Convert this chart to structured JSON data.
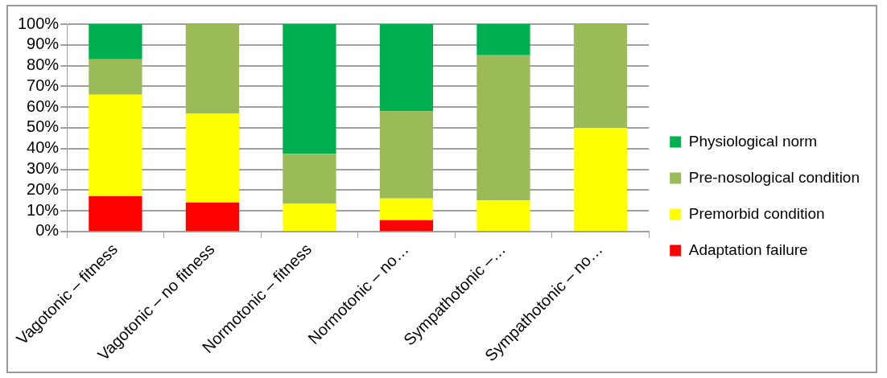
{
  "chart_data": {
    "type": "bar",
    "stacked": true,
    "categories": [
      "Vagotonic – fitness",
      "Vagotonic – no fitness",
      "Normotonic – fitness",
      "Normotonic – no…",
      "Sympathotonic –…",
      "Sympathotonic – no…"
    ],
    "series": [
      {
        "name": "Adaptation failure",
        "color": "#ff0000",
        "values": [
          17,
          14,
          0,
          5.5,
          0,
          0
        ]
      },
      {
        "name": "Premorbid condition",
        "color": "#ffff00",
        "values": [
          49,
          43,
          13.5,
          10.5,
          15,
          50
        ]
      },
      {
        "name": "Pre-nosological condition",
        "color": "#9bbb59",
        "values": [
          17,
          43,
          24,
          42,
          70,
          50
        ]
      },
      {
        "name": "Physiological norm",
        "color": "#00b050",
        "values": [
          17,
          0,
          62.5,
          42,
          15,
          0
        ]
      }
    ],
    "ylim": [
      0,
      100
    ],
    "yticks": [
      {
        "value": 0,
        "label": "0%"
      },
      {
        "value": 10,
        "label": "10%"
      },
      {
        "value": 20,
        "label": "20%"
      },
      {
        "value": 30,
        "label": "30%"
      },
      {
        "value": 40,
        "label": "40%"
      },
      {
        "value": 50,
        "label": "50%"
      },
      {
        "value": 60,
        "label": "60%"
      },
      {
        "value": 70,
        "label": "70%"
      },
      {
        "value": 80,
        "label": "80%"
      },
      {
        "value": 90,
        "label": "90%"
      },
      {
        "value": 100,
        "label": "100%"
      }
    ],
    "grid": "y",
    "legend": "right"
  }
}
